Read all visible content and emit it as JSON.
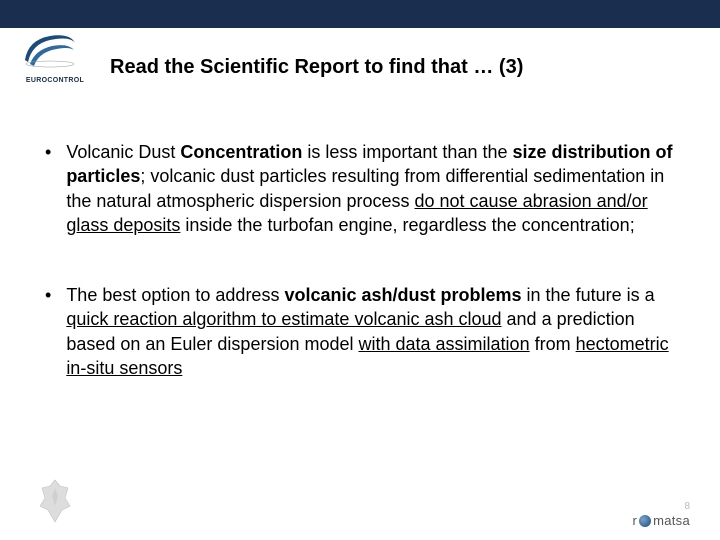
{
  "brand": {
    "top_bar_color": "#1a2e4f",
    "logo_label": "EUROCONTROL"
  },
  "title": "Read the Scientific Report to find that … (3)",
  "bullets": [
    {
      "segments": [
        {
          "t": "Volcanic Dust "
        },
        {
          "t": "Concentration",
          "bold": true
        },
        {
          "t": " is less important than the "
        },
        {
          "t": "size distribution of particles",
          "bold": true
        },
        {
          "t": "; volcanic dust particles resulting from differential sedimentation in the natural atmospheric dispersion process "
        },
        {
          "t": "do not cause abrasion and/or glass deposits",
          "underline": true
        },
        {
          "t": " inside the turbofan engine, regardless the concentration;"
        }
      ]
    },
    {
      "segments": [
        {
          "t": "The best option to address "
        },
        {
          "t": "volcanic ash/dust problems",
          "bold": true
        },
        {
          "t": " in the future is a "
        },
        {
          "t": "quick reaction algorithm to estimate volcanic ash cloud",
          "underline": true
        },
        {
          "t": " and a prediction based on an Euler dispersion model "
        },
        {
          "t": "with data assimilation",
          "underline": true
        },
        {
          "t": " from "
        },
        {
          "t": "hectometric in-situ sensors",
          "underline": true
        }
      ]
    }
  ],
  "footer": {
    "right_brand": "romatsa",
    "page_number": "8"
  }
}
